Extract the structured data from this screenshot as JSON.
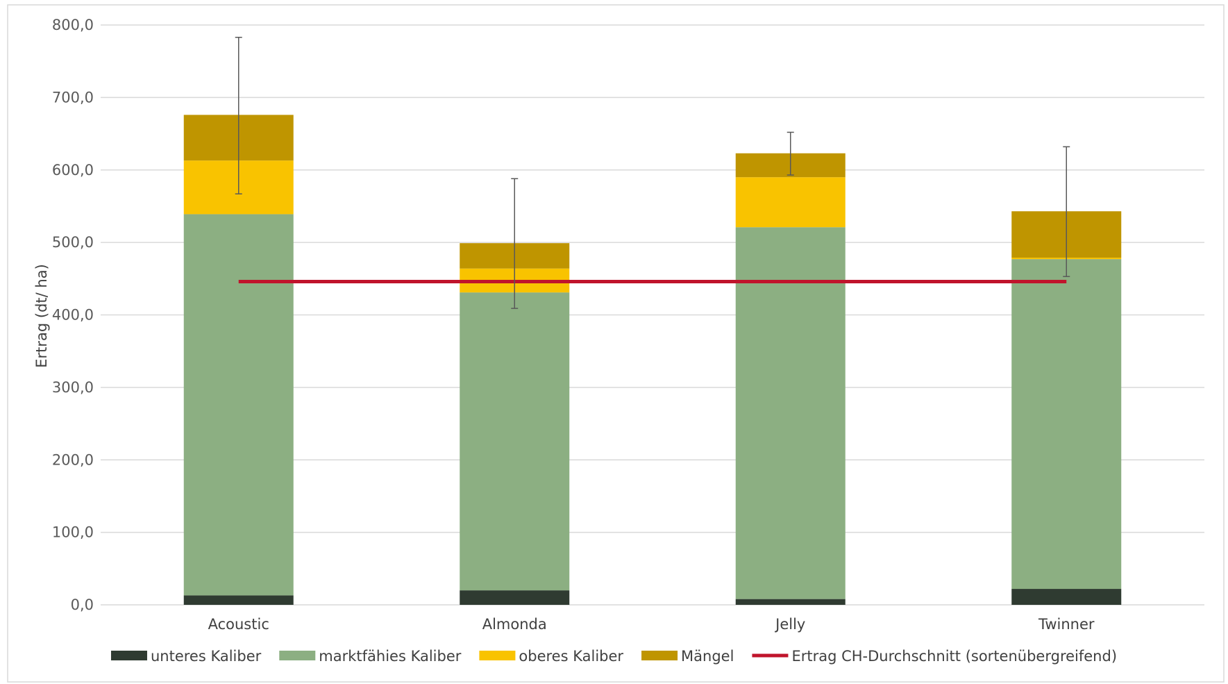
{
  "colors": {
    "unteres": "#2f3b31",
    "marktfaehig": "#8caf82",
    "oberes": "#f9c300",
    "maengel": "#bf9500",
    "average_line": "#c0142c",
    "grid": "#d9d9d9",
    "error_bar": "#595959",
    "frame": "#d9d9d9"
  },
  "chart_data": {
    "type": "bar",
    "stacked": true,
    "categories": [
      "Acoustic",
      "Almonda",
      "Jelly",
      "Twinner"
    ],
    "series": [
      {
        "name": "unteres Kaliber",
        "color_key": "unteres",
        "values": [
          13,
          20,
          8,
          22
        ]
      },
      {
        "name": "marktfähies Kaliber",
        "color_key": "marktfaehig",
        "values": [
          526,
          411,
          513,
          455
        ]
      },
      {
        "name": "oberes Kaliber",
        "color_key": "oberes",
        "values": [
          74,
          33,
          69,
          2
        ]
      },
      {
        "name": "Mängel",
        "color_key": "maengel",
        "values": [
          63,
          35,
          33,
          64
        ]
      }
    ],
    "error_bars": [
      {
        "low": 567,
        "high": 783
      },
      {
        "low": 409,
        "high": 588
      },
      {
        "low": 593,
        "high": 652
      },
      {
        "low": 453,
        "high": 632
      }
    ],
    "average_line": {
      "name": "Ertrag CH-Durchschnitt (sortenübergreifend)",
      "value": 446
    },
    "title": "",
    "xlabel": "",
    "ylabel": "Ertrag (dt/ ha)",
    "ylim": [
      0,
      800
    ],
    "yticks": [
      0,
      100,
      200,
      300,
      400,
      500,
      600,
      700,
      800
    ],
    "ytick_labels": [
      "0,0",
      "100,0",
      "200,0",
      "300,0",
      "400,0",
      "500,0",
      "600,0",
      "700,0",
      "800,0"
    ],
    "grid": true,
    "legend_position": "bottom"
  }
}
